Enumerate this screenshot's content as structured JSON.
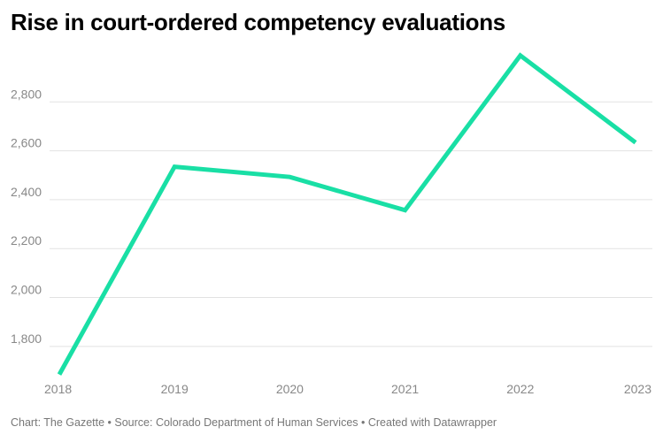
{
  "title": "Rise in court-ordered competency evaluations",
  "footer": {
    "source": "Chart: The Gazette • Source: Colorado Department of Human Services • Created with Datawrapper"
  },
  "colors": {
    "line": "#19dfa5",
    "grid": "#e2e2e2",
    "tick_text": "#888888"
  },
  "chart_data": {
    "type": "line",
    "title": "Rise in court-ordered competency evaluations",
    "xlabel": "",
    "ylabel": "",
    "categories": [
      "2018",
      "2019",
      "2020",
      "2021",
      "2022",
      "2023"
    ],
    "series": [
      {
        "values": [
          1685,
          2535,
          2493,
          2357,
          2990,
          2634
        ]
      }
    ],
    "ylim": [
      1680,
      3000
    ],
    "yticks": [
      1800,
      2000,
      2200,
      2400,
      2600,
      2800
    ],
    "ytick_labels": [
      "1,800",
      "2,000",
      "2,200",
      "2,400",
      "2,600",
      "2,800"
    ],
    "grid": true,
    "legend": "none"
  }
}
